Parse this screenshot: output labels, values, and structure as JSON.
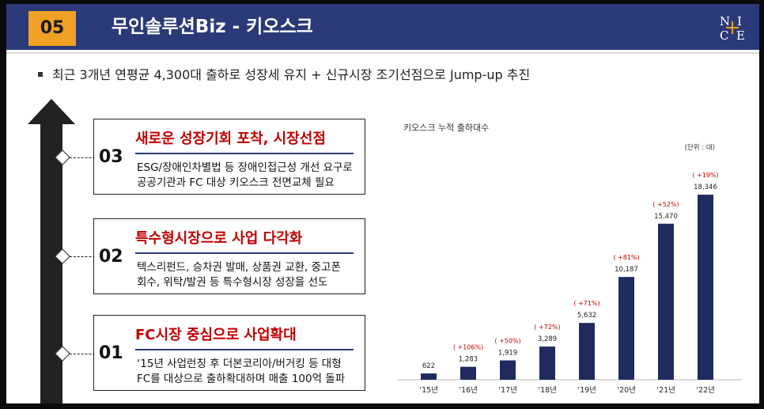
{
  "header": {
    "number": "05",
    "title": "무인솔루션Biz - 키오스크",
    "logo_letters": [
      "N",
      "I",
      "C",
      "E"
    ]
  },
  "summary": "최근 3개년 연평균 4,300대 출하로 성장세 유지 + 신규시장 조기선점으로 Jump-up 추진",
  "stages": [
    {
      "num": "03",
      "title": "새로운 성장기회 포착, 시장선점",
      "desc": [
        "ESG/장애인차별법 등 장애인접근성 개선 요구로",
        "공공기관과 FC 대상 키오스크 전면교체 필요"
      ]
    },
    {
      "num": "02",
      "title": "특수형시장으로 사업 다각화",
      "desc": [
        "텍스리펀드, 승차권 발매, 상품권 교환, 중고폰",
        "회수, 위탁/발권 등 특수형시장 성장을 선도"
      ]
    },
    {
      "num": "01",
      "title": "FC시장 중심으로 사업확대",
      "desc": [
        "‘15년 사업런칭 후 더본코리아/버거킹 등 대형",
        "FC를 대상으로 출하확대하며 매출 100억 돌파"
      ]
    }
  ],
  "chart_data": {
    "type": "bar",
    "title": "키오스크 누적 출하대수",
    "unit_note": "(단위 : 대)",
    "categories": [
      "‘15년",
      "‘16년",
      "‘17년",
      "‘18년",
      "‘19년",
      "‘20년",
      "‘21년",
      "‘22년"
    ],
    "values": [
      622,
      1283,
      1919,
      3289,
      5632,
      10187,
      15470,
      18346
    ],
    "value_labels": [
      "622",
      "1,283",
      "1,919",
      "3,289",
      "5,632",
      "10,187",
      "15,470",
      "18,346"
    ],
    "growth_labels": [
      "",
      "( +106%)",
      "( +50%)",
      "( +72%)",
      "( +71%)",
      "( +81%)",
      "( +52%)",
      "( +19%)"
    ],
    "ylim": [
      0,
      20000
    ],
    "grid": false,
    "bar_color": "#1f2b5e",
    "growth_color": "#c00000"
  },
  "colors": {
    "header_bg": "#2a3a78",
    "number_box": "#f0a025",
    "stage_title": "#c00000",
    "arrow": "#222222"
  }
}
